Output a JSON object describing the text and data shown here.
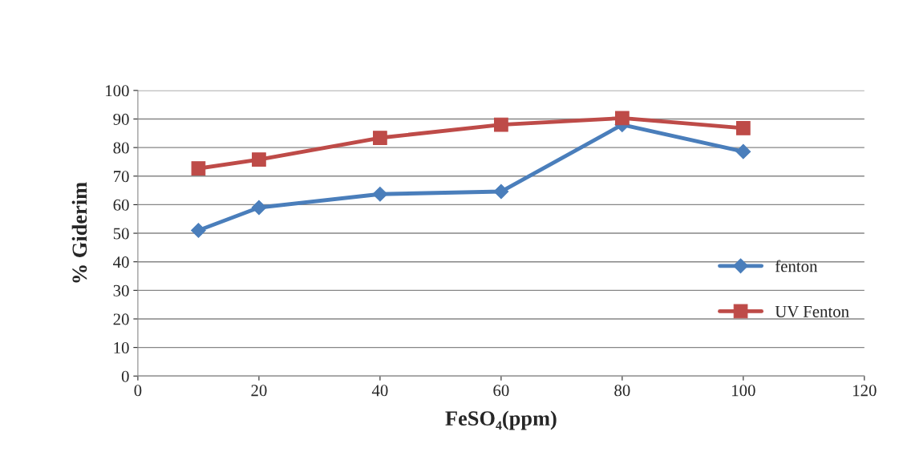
{
  "chart_data": {
    "type": "line",
    "xlabel": "FeSO₄(ppm)",
    "ylabel": "% Giderim",
    "x": [
      10,
      20,
      40,
      60,
      80,
      100
    ],
    "series": [
      {
        "name": "fenton",
        "color": "#4a7ebb",
        "marker": "diamond",
        "values": [
          51,
          59,
          63.7,
          64.6,
          88,
          78.6
        ]
      },
      {
        "name": "UV Fenton",
        "color": "#be4b48",
        "marker": "square",
        "values": [
          72.7,
          75.8,
          83.4,
          88,
          90.3,
          86.8
        ]
      }
    ],
    "xlim": [
      0,
      120
    ],
    "xticks": [
      0,
      20,
      40,
      60,
      80,
      100,
      120
    ],
    "ylim": [
      0,
      100
    ],
    "yticks": [
      0,
      10,
      20,
      30,
      40,
      50,
      60,
      70,
      80,
      90,
      100
    ],
    "grid": "y",
    "legend": "right",
    "line_style": "solid"
  }
}
